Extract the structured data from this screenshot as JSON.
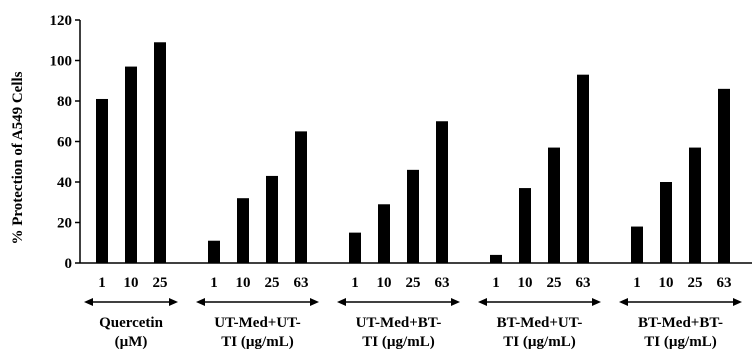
{
  "chart_data": {
    "type": "bar",
    "ylabel": "% Protection of A549 Cells",
    "ylim": [
      0,
      120
    ],
    "yticks": [
      0,
      20,
      40,
      60,
      80,
      100,
      120
    ],
    "grid": false,
    "legend": "none",
    "bar_color": "#000000",
    "groups": [
      {
        "label_lines": [
          "Quercetin",
          "(µM)"
        ],
        "categories": [
          "1",
          "10",
          "25"
        ],
        "values": [
          81,
          97,
          109
        ]
      },
      {
        "label_lines": [
          "UT-Med+UT-",
          "TI (µg/mL)"
        ],
        "categories": [
          "1",
          "10",
          "25",
          "63"
        ],
        "values": [
          11,
          32,
          43,
          65
        ]
      },
      {
        "label_lines": [
          "UT-Med+BT-",
          "TI (µg/mL)"
        ],
        "categories": [
          "1",
          "10",
          "25",
          "63"
        ],
        "values": [
          15,
          29,
          46,
          70
        ]
      },
      {
        "label_lines": [
          "BT-Med+UT-",
          "TI (µg/mL)"
        ],
        "categories": [
          "1",
          "10",
          "25",
          "63"
        ],
        "values": [
          4,
          37,
          57,
          93
        ]
      },
      {
        "label_lines": [
          "BT-Med+BT-",
          "TI (µg/mL)"
        ],
        "categories": [
          "1",
          "10",
          "25",
          "63"
        ],
        "values": [
          18,
          40,
          57,
          86
        ]
      }
    ]
  }
}
